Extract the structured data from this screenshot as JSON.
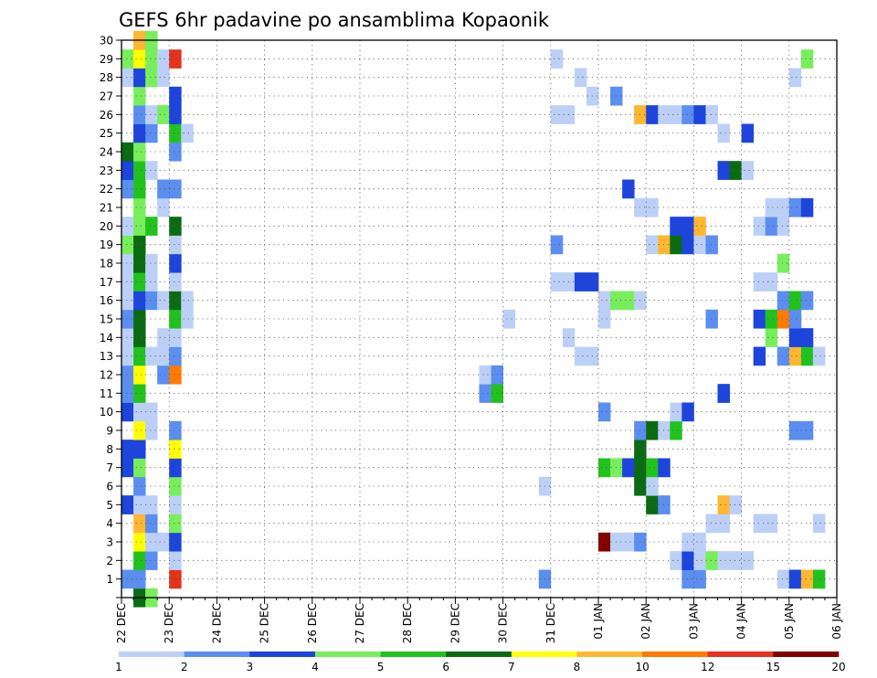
{
  "chart_data": {
    "type": "heatmap",
    "title": "GEFS 6hr padavine po ansamblima Kopaonik",
    "xlabel": "",
    "ylabel": "",
    "x_ticks": [
      "22 DEC",
      "23 DEC",
      "24 DEC",
      "25 DEC",
      "26 DEC",
      "27 DEC",
      "28 DEC",
      "29 DEC",
      "30 DEC",
      "31 DEC",
      "01 JAN",
      "02 JAN",
      "03 JAN",
      "04 JAN",
      "05 JAN",
      "06 JAN"
    ],
    "x_range": [
      "22 DEC 00Z",
      "06 JAN 00Z"
    ],
    "x_step": "6hr",
    "y_ticks": [
      1,
      2,
      3,
      4,
      5,
      6,
      7,
      8,
      9,
      10,
      11,
      12,
      13,
      14,
      15,
      16,
      17,
      18,
      19,
      20,
      21,
      22,
      23,
      24,
      25,
      26,
      27,
      28,
      29,
      30
    ],
    "y_range": [
      0,
      30
    ],
    "grid": true,
    "colorbar": {
      "levels": [
        "1",
        "2",
        "3",
        "4",
        "5",
        "6",
        "7",
        "8",
        "10",
        "12",
        "15",
        "20"
      ],
      "colors": [
        "#bcd0f7",
        "#5c8ef0",
        "#1d44dc",
        "#79ee5c",
        "#22c21e",
        "#0b6b12",
        "#ffff00",
        "#ffb732",
        "#ff7a00",
        "#e4321c",
        "#820000"
      ]
    },
    "cells": [
      [
        0,
        1,
        2
      ],
      [
        0,
        5,
        3
      ],
      [
        0,
        7,
        3
      ],
      [
        0,
        8,
        3
      ],
      [
        0,
        10,
        3
      ],
      [
        0,
        11,
        2
      ],
      [
        0,
        12,
        2
      ],
      [
        0,
        13,
        1
      ],
      [
        0,
        14,
        1
      ],
      [
        0,
        15,
        2
      ],
      [
        0,
        16,
        1
      ],
      [
        0,
        17,
        1
      ],
      [
        0,
        18,
        1
      ],
      [
        0,
        19,
        4
      ],
      [
        0,
        20,
        1
      ],
      [
        0,
        22,
        2
      ],
      [
        0,
        23,
        3
      ],
      [
        0,
        24,
        6
      ],
      [
        0,
        28,
        1
      ],
      [
        0,
        29,
        4
      ],
      [
        1,
        0,
        6
      ],
      [
        1,
        1,
        2
      ],
      [
        1,
        2,
        5
      ],
      [
        1,
        3,
        7
      ],
      [
        1,
        4,
        8
      ],
      [
        1,
        5,
        1
      ],
      [
        1,
        6,
        2
      ],
      [
        1,
        7,
        4
      ],
      [
        1,
        8,
        3
      ],
      [
        1,
        9,
        7
      ],
      [
        1,
        10,
        1
      ],
      [
        1,
        11,
        5
      ],
      [
        1,
        12,
        7
      ],
      [
        1,
        13,
        5
      ],
      [
        1,
        14,
        6
      ],
      [
        1,
        15,
        6
      ],
      [
        1,
        16,
        3
      ],
      [
        1,
        17,
        5
      ],
      [
        1,
        18,
        6
      ],
      [
        1,
        19,
        6
      ],
      [
        1,
        20,
        4
      ],
      [
        1,
        21,
        4
      ],
      [
        1,
        22,
        5
      ],
      [
        1,
        23,
        5
      ],
      [
        1,
        24,
        4
      ],
      [
        1,
        25,
        3
      ],
      [
        1,
        26,
        2
      ],
      [
        1,
        27,
        4
      ],
      [
        1,
        28,
        3
      ],
      [
        1,
        29,
        7
      ],
      [
        1,
        30,
        8
      ],
      [
        2,
        0,
        4
      ],
      [
        2,
        2,
        2
      ],
      [
        2,
        3,
        1
      ],
      [
        2,
        4,
        2
      ],
      [
        2,
        5,
        1
      ],
      [
        2,
        9,
        1
      ],
      [
        2,
        10,
        1
      ],
      [
        2,
        13,
        1
      ],
      [
        2,
        16,
        2
      ],
      [
        2,
        17,
        1
      ],
      [
        2,
        18,
        1
      ],
      [
        2,
        20,
        5
      ],
      [
        2,
        23,
        1
      ],
      [
        2,
        25,
        2
      ],
      [
        2,
        26,
        1
      ],
      [
        2,
        28,
        4
      ],
      [
        2,
        29,
        4
      ],
      [
        2,
        30,
        4
      ],
      [
        3,
        3,
        1
      ],
      [
        3,
        12,
        2
      ],
      [
        3,
        13,
        1
      ],
      [
        3,
        14,
        1
      ],
      [
        3,
        16,
        1
      ],
      [
        3,
        21,
        1
      ],
      [
        3,
        22,
        2
      ],
      [
        3,
        26,
        4
      ],
      [
        3,
        28,
        1
      ],
      [
        3,
        29,
        1
      ],
      [
        4,
        1,
        10
      ],
      [
        4,
        2,
        1
      ],
      [
        4,
        3,
        3
      ],
      [
        4,
        4,
        4
      ],
      [
        4,
        5,
        1
      ],
      [
        4,
        6,
        4
      ],
      [
        4,
        7,
        3
      ],
      [
        4,
        8,
        7
      ],
      [
        4,
        9,
        2
      ],
      [
        4,
        12,
        9
      ],
      [
        4,
        13,
        2
      ],
      [
        4,
        14,
        1
      ],
      [
        4,
        15,
        5
      ],
      [
        4,
        16,
        6
      ],
      [
        4,
        17,
        1
      ],
      [
        4,
        18,
        3
      ],
      [
        4,
        19,
        1
      ],
      [
        4,
        20,
        6
      ],
      [
        4,
        22,
        2
      ],
      [
        4,
        24,
        2
      ],
      [
        4,
        25,
        5
      ],
      [
        4,
        26,
        3
      ],
      [
        4,
        27,
        3
      ],
      [
        4,
        29,
        10
      ],
      [
        5,
        15,
        1
      ],
      [
        5,
        16,
        1
      ],
      [
        5,
        25,
        1
      ],
      [
        30,
        11,
        2
      ],
      [
        30,
        12,
        1
      ],
      [
        31,
        11,
        5
      ],
      [
        31,
        12,
        2
      ],
      [
        32,
        15,
        1
      ],
      [
        35,
        1,
        2
      ],
      [
        35,
        6,
        1
      ],
      [
        36,
        17,
        1
      ],
      [
        36,
        19,
        2
      ],
      [
        36,
        26,
        1
      ],
      [
        36,
        29,
        1
      ],
      [
        37,
        14,
        1
      ],
      [
        37,
        17,
        1
      ],
      [
        37,
        26,
        1
      ],
      [
        38,
        13,
        1
      ],
      [
        38,
        17,
        3
      ],
      [
        38,
        28,
        1
      ],
      [
        39,
        13,
        1
      ],
      [
        39,
        17,
        3
      ],
      [
        39,
        27,
        1
      ],
      [
        40,
        3,
        11
      ],
      [
        40,
        7,
        5
      ],
      [
        40,
        10,
        2
      ],
      [
        40,
        15,
        1
      ],
      [
        40,
        16,
        1
      ],
      [
        41,
        3,
        1
      ],
      [
        41,
        7,
        4
      ],
      [
        41,
        16,
        4
      ],
      [
        41,
        27,
        2
      ],
      [
        42,
        3,
        1
      ],
      [
        42,
        7,
        3
      ],
      [
        42,
        16,
        4
      ],
      [
        42,
        22,
        3
      ],
      [
        43,
        3,
        2
      ],
      [
        43,
        6,
        6
      ],
      [
        43,
        7,
        6
      ],
      [
        43,
        8,
        6
      ],
      [
        43,
        9,
        2
      ],
      [
        43,
        16,
        1
      ],
      [
        43,
        21,
        1
      ],
      [
        43,
        26,
        8
      ],
      [
        44,
        5,
        6
      ],
      [
        44,
        6,
        1
      ],
      [
        44,
        7,
        5
      ],
      [
        44,
        9,
        6
      ],
      [
        44,
        19,
        1
      ],
      [
        44,
        21,
        1
      ],
      [
        44,
        26,
        3
      ],
      [
        45,
        5,
        2
      ],
      [
        45,
        7,
        3
      ],
      [
        45,
        9,
        1
      ],
      [
        45,
        19,
        8
      ],
      [
        45,
        26,
        1
      ],
      [
        46,
        2,
        1
      ],
      [
        46,
        9,
        5
      ],
      [
        46,
        10,
        1
      ],
      [
        46,
        19,
        6
      ],
      [
        46,
        20,
        3
      ],
      [
        46,
        26,
        1
      ],
      [
        47,
        1,
        2
      ],
      [
        47,
        2,
        3
      ],
      [
        47,
        3,
        1
      ],
      [
        47,
        10,
        3
      ],
      [
        47,
        19,
        3
      ],
      [
        47,
        20,
        3
      ],
      [
        47,
        26,
        2
      ],
      [
        48,
        1,
        2
      ],
      [
        48,
        2,
        1
      ],
      [
        48,
        3,
        1
      ],
      [
        48,
        19,
        1
      ],
      [
        48,
        20,
        8
      ],
      [
        48,
        26,
        3
      ],
      [
        49,
        2,
        4
      ],
      [
        49,
        4,
        1
      ],
      [
        49,
        15,
        2
      ],
      [
        49,
        19,
        2
      ],
      [
        49,
        26,
        1
      ],
      [
        50,
        2,
        1
      ],
      [
        50,
        4,
        1
      ],
      [
        50,
        5,
        8
      ],
      [
        50,
        11,
        3
      ],
      [
        50,
        23,
        3
      ],
      [
        50,
        25,
        1
      ],
      [
        51,
        2,
        1
      ],
      [
        51,
        5,
        1
      ],
      [
        51,
        23,
        6
      ],
      [
        52,
        2,
        1
      ],
      [
        52,
        23,
        1
      ],
      [
        52,
        25,
        3
      ],
      [
        53,
        4,
        1
      ],
      [
        53,
        13,
        3
      ],
      [
        53,
        15,
        3
      ],
      [
        53,
        17,
        1
      ],
      [
        53,
        20,
        1
      ],
      [
        54,
        4,
        1
      ],
      [
        54,
        14,
        4
      ],
      [
        54,
        15,
        5
      ],
      [
        54,
        17,
        1
      ],
      [
        54,
        20,
        2
      ],
      [
        54,
        21,
        1
      ],
      [
        55,
        1,
        1
      ],
      [
        55,
        13,
        2
      ],
      [
        55,
        15,
        9
      ],
      [
        55,
        16,
        2
      ],
      [
        55,
        18,
        4
      ],
      [
        55,
        20,
        1
      ],
      [
        55,
        21,
        1
      ],
      [
        56,
        1,
        3
      ],
      [
        56,
        9,
        2
      ],
      [
        56,
        13,
        8
      ],
      [
        56,
        14,
        3
      ],
      [
        56,
        15,
        2
      ],
      [
        56,
        16,
        5
      ],
      [
        56,
        21,
        2
      ],
      [
        56,
        28,
        1
      ],
      [
        57,
        1,
        8
      ],
      [
        57,
        9,
        2
      ],
      [
        57,
        13,
        5
      ],
      [
        57,
        14,
        3
      ],
      [
        57,
        16,
        2
      ],
      [
        57,
        21,
        3
      ],
      [
        57,
        29,
        4
      ],
      [
        58,
        1,
        5
      ],
      [
        58,
        4,
        1
      ],
      [
        58,
        13,
        1
      ]
    ]
  }
}
